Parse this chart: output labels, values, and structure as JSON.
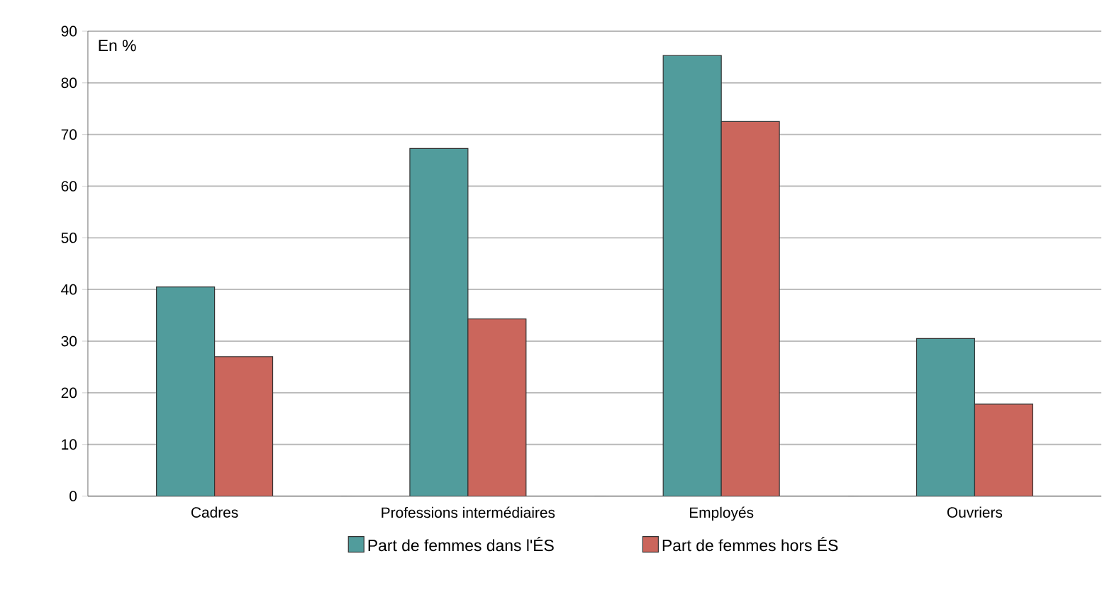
{
  "chart_data": {
    "type": "bar",
    "categories": [
      "Cadres",
      "Professions intermédiaires",
      "Employés",
      "Ouvriers"
    ],
    "series": [
      {
        "name": "Part de femmes dans l'ÉS",
        "color": "#519c9c",
        "values": [
          40.5,
          67.3,
          85.3,
          30.5
        ]
      },
      {
        "name": "Part de femmes hors ÉS",
        "color": "#cb665c",
        "values": [
          27,
          34.3,
          72.5,
          17.8
        ]
      }
    ],
    "ylim": [
      0,
      90
    ],
    "yticks": [
      0,
      10,
      20,
      30,
      40,
      50,
      60,
      70,
      80,
      90
    ],
    "grid": "y",
    "legend": "bottom",
    "annotations": [
      "En %"
    ]
  }
}
